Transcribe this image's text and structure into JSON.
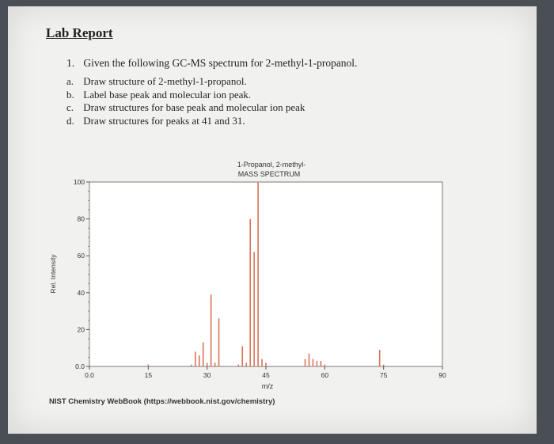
{
  "document": {
    "heading": "Lab Report",
    "question_number": "1.",
    "question_text": "Given the following GC-MS spectrum for 2-methyl-1-propanol.",
    "subitems": [
      {
        "letter": "a.",
        "text": "Draw structure of 2-methyl-1-propanol."
      },
      {
        "letter": "b.",
        "text": "Label base peak and molecular ion peak."
      },
      {
        "letter": "c.",
        "text": "Draw structures for base peak and molecular ion peak"
      },
      {
        "letter": "d.",
        "text": "Draw structures for peaks at 41 and 31."
      }
    ],
    "source": "NIST Chemistry WebBook (https://webbook.nist.gov/chemistry)"
  },
  "chart_data": {
    "type": "bar",
    "title": "1-Propanol, 2-methyl-",
    "subtitle": "MASS SPECTRUM",
    "xlabel": "m/z",
    "ylabel": "Rel. Intensity",
    "xlim": [
      0,
      90
    ],
    "ylim": [
      0,
      100
    ],
    "x_ticks": [
      "0.0",
      "15",
      "30",
      "45",
      "60",
      "75",
      "90"
    ],
    "x_tick_values": [
      0,
      15,
      30,
      45,
      60,
      75,
      90
    ],
    "y_ticks": [
      "0.0",
      "20",
      "40",
      "60",
      "80",
      "100"
    ],
    "y_tick_values": [
      0,
      20,
      40,
      60,
      80,
      100
    ],
    "grid": false,
    "bar_color": "#d9735a",
    "peaks": [
      {
        "mz": 15,
        "intensity": 1
      },
      {
        "mz": 26,
        "intensity": 1
      },
      {
        "mz": 27,
        "intensity": 8
      },
      {
        "mz": 28,
        "intensity": 6
      },
      {
        "mz": 29,
        "intensity": 13
      },
      {
        "mz": 30,
        "intensity": 2
      },
      {
        "mz": 31,
        "intensity": 39
      },
      {
        "mz": 32,
        "intensity": 2
      },
      {
        "mz": 33,
        "intensity": 26
      },
      {
        "mz": 38,
        "intensity": 1
      },
      {
        "mz": 39,
        "intensity": 11
      },
      {
        "mz": 40,
        "intensity": 2
      },
      {
        "mz": 41,
        "intensity": 80
      },
      {
        "mz": 42,
        "intensity": 62
      },
      {
        "mz": 43,
        "intensity": 100
      },
      {
        "mz": 44,
        "intensity": 4
      },
      {
        "mz": 45,
        "intensity": 2
      },
      {
        "mz": 55,
        "intensity": 4
      },
      {
        "mz": 56,
        "intensity": 7
      },
      {
        "mz": 57,
        "intensity": 4
      },
      {
        "mz": 58,
        "intensity": 3
      },
      {
        "mz": 59,
        "intensity": 3
      },
      {
        "mz": 60,
        "intensity": 1
      },
      {
        "mz": 74,
        "intensity": 9
      },
      {
        "mz": 75,
        "intensity": 1
      }
    ]
  }
}
